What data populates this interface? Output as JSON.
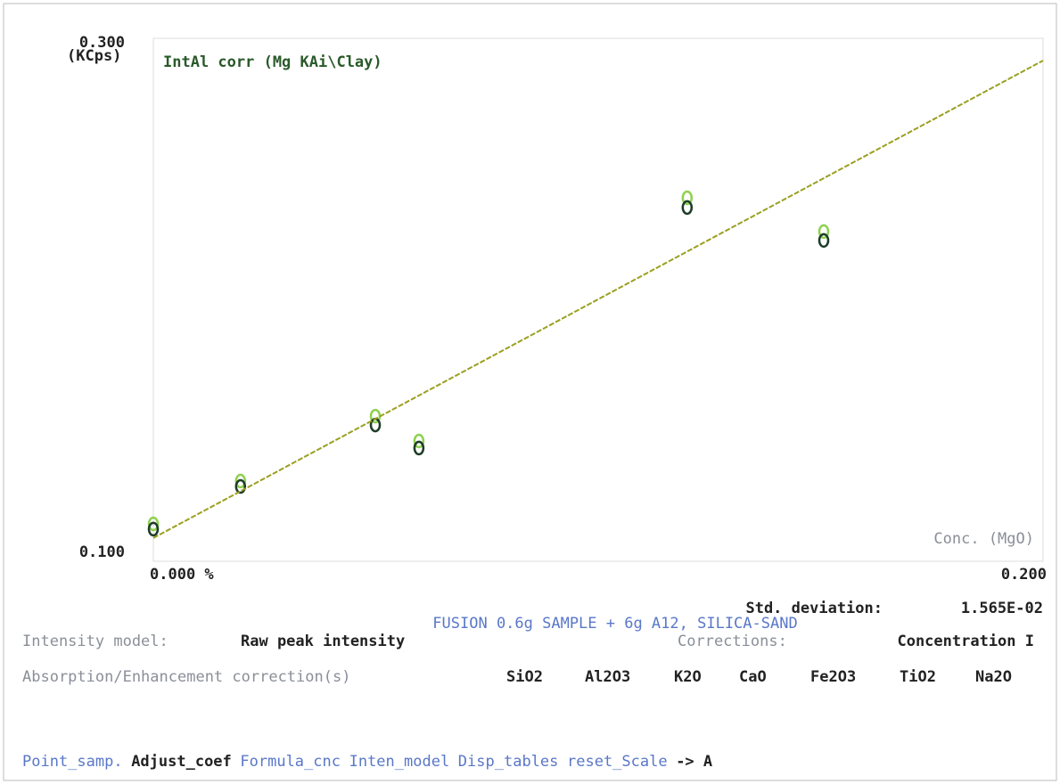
{
  "chart_data": {
    "type": "scatter",
    "title": "IntAl corr (Mg KAi\\Clay)",
    "y_label": "(KCps)",
    "x_label": "Conc. (MgO)",
    "xlim": [
      0,
      0.2
    ],
    "ylim": [
      0.1,
      0.3
    ],
    "xticks": [
      {
        "value": 0,
        "label": "0.000 %"
      },
      {
        "value": 0.2,
        "label": "0.200"
      }
    ],
    "yticks": [
      {
        "value": 0.1,
        "label": "0.100"
      },
      {
        "value": 0.3,
        "label": "0.300"
      }
    ],
    "series": [
      {
        "type": "scatter",
        "color": "#8fd14f",
        "x": [
          0,
          0.0196,
          0.0499,
          0.0597,
          0.12,
          0.1507
        ],
        "values": [
          0.1143,
          0.1307,
          0.1555,
          0.146,
          0.239,
          0.2261
        ]
      },
      {
        "type": "scatter",
        "color": "#1e3c28",
        "x": [
          0,
          0.0196,
          0.0499,
          0.0597,
          0.12,
          0.1507
        ],
        "values": [
          0.1123,
          0.1286,
          0.1521,
          0.1433,
          0.2353,
          0.2227
        ]
      },
      {
        "type": "line",
        "color": "#9aa020",
        "x": [
          0,
          0.2
        ],
        "values": [
          0.1089,
          0.2915
        ]
      }
    ]
  },
  "status": {
    "std_deviation_label": "Std. deviation:",
    "std_deviation_value": "1.565E-02",
    "sample": "FUSION 0.6g SAMPLE + 6g A12, SILICA-SAND",
    "intensity_model_label": "Intensity model:",
    "intensity_model_value": "Raw peak intensity",
    "corrections_label": "Corrections:",
    "corrections_value": "Concentration I",
    "absorption_label": "Absorption/Enhancement correction(s)",
    "oxides": [
      "SiO2",
      "Al2O3",
      "K2O",
      "CaO",
      "Fe2O3",
      "TiO2",
      "Na2O"
    ]
  },
  "menu": [
    "Point_samp.",
    "Adjust_coef",
    "Formula_cnc",
    "Inten_model",
    "Disp_tables",
    "reset_Scale",
    "-> A"
  ]
}
